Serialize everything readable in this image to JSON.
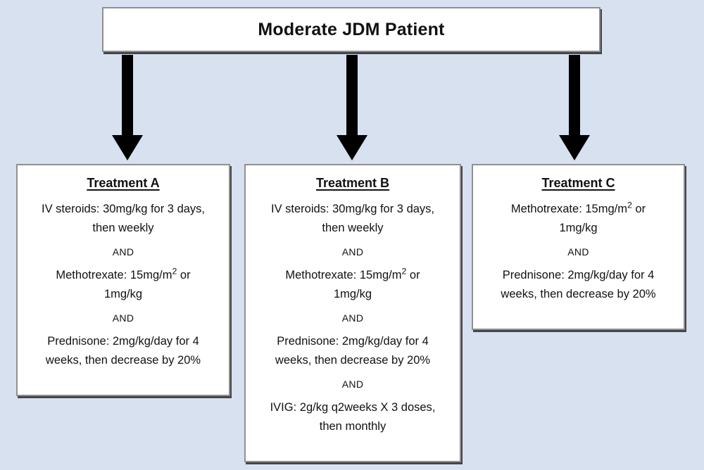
{
  "colors": {
    "background": "#d7e1f0",
    "box_fill": "#ffffff",
    "box_border": "#909090",
    "box_shadow": "#454545",
    "arrow": "#000000",
    "text": "#111111"
  },
  "root": {
    "title": "Moderate JDM Patient"
  },
  "treatments": [
    {
      "title": "Treatment A",
      "items": [
        {
          "type": "dose",
          "lines": [
            [
              {
                "t": "text",
                "v": "IV steroids: 30mg/kg for 3 days,"
              }
            ],
            [
              {
                "t": "text",
                "v": "then weekly"
              }
            ]
          ]
        },
        {
          "type": "connector",
          "lines": [
            [
              {
                "t": "text",
                "v": "AND"
              }
            ]
          ]
        },
        {
          "type": "dose",
          "lines": [
            [
              {
                "t": "text",
                "v": "Methotrexate: 15mg/m"
              },
              {
                "t": "sup",
                "v": "2"
              },
              {
                "t": "text",
                "v": " or"
              }
            ],
            [
              {
                "t": "text",
                "v": "1mg/kg"
              }
            ]
          ]
        },
        {
          "type": "connector",
          "lines": [
            [
              {
                "t": "text",
                "v": "AND"
              }
            ]
          ]
        },
        {
          "type": "dose",
          "lines": [
            [
              {
                "t": "text",
                "v": "Prednisone: 2mg/kg/day for 4"
              }
            ],
            [
              {
                "t": "text",
                "v": "weeks, then decrease by 20%"
              }
            ]
          ]
        }
      ]
    },
    {
      "title": "Treatment B",
      "items": [
        {
          "type": "dose",
          "lines": [
            [
              {
                "t": "text",
                "v": "IV steroids: 30mg/kg for 3 days,"
              }
            ],
            [
              {
                "t": "text",
                "v": "then weekly"
              }
            ]
          ]
        },
        {
          "type": "connector",
          "lines": [
            [
              {
                "t": "text",
                "v": "AND"
              }
            ]
          ]
        },
        {
          "type": "dose",
          "lines": [
            [
              {
                "t": "text",
                "v": "Methotrexate: 15mg/m"
              },
              {
                "t": "sup",
                "v": "2"
              },
              {
                "t": "text",
                "v": " or"
              }
            ],
            [
              {
                "t": "text",
                "v": "1mg/kg"
              }
            ]
          ]
        },
        {
          "type": "connector",
          "lines": [
            [
              {
                "t": "text",
                "v": "AND"
              }
            ]
          ]
        },
        {
          "type": "dose",
          "lines": [
            [
              {
                "t": "text",
                "v": "Prednisone: 2mg/kg/day for 4"
              }
            ],
            [
              {
                "t": "text",
                "v": "weeks, then decrease by 20%"
              }
            ]
          ]
        },
        {
          "type": "connector",
          "lines": [
            [
              {
                "t": "text",
                "v": "AND"
              }
            ]
          ]
        },
        {
          "type": "dose",
          "lines": [
            [
              {
                "t": "text",
                "v": "IVIG: 2g/kg q2weeks X 3 doses,"
              }
            ],
            [
              {
                "t": "text",
                "v": "then monthly"
              }
            ]
          ]
        }
      ]
    },
    {
      "title": "Treatment C",
      "items": [
        {
          "type": "dose",
          "lines": [
            [
              {
                "t": "text",
                "v": "Methotrexate: 15mg/m"
              },
              {
                "t": "sup",
                "v": "2"
              },
              {
                "t": "text",
                "v": " or"
              }
            ],
            [
              {
                "t": "text",
                "v": "1mg/kg"
              }
            ]
          ]
        },
        {
          "type": "connector",
          "lines": [
            [
              {
                "t": "text",
                "v": "AND"
              }
            ]
          ]
        },
        {
          "type": "dose",
          "lines": [
            [
              {
                "t": "text",
                "v": "Prednisone: 2mg/kg/day for 4"
              }
            ],
            [
              {
                "t": "text",
                "v": "weeks, then decrease by 20%"
              }
            ]
          ]
        }
      ]
    }
  ]
}
